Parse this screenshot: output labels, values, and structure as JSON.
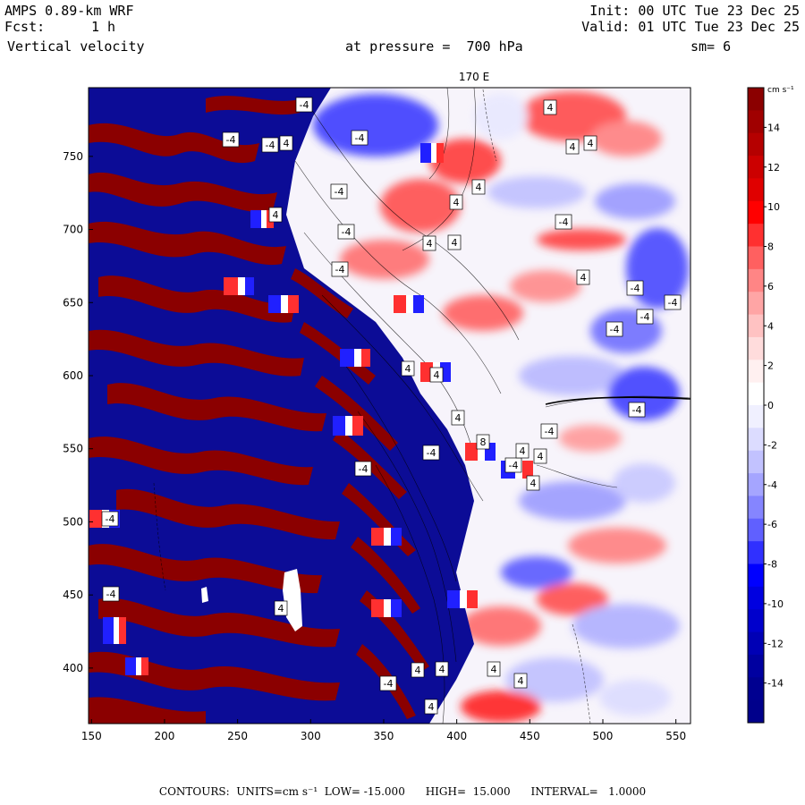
{
  "header": {
    "model": "AMPS 0.89-km WRF",
    "fcst_label": "Fcst:",
    "fcst_value": "1 h",
    "variable": "Vertical velocity",
    "level_text": "at pressure =  700 hPa",
    "init_text": "Init: 00 UTC Tue 23 Dec 25",
    "valid_text": "Valid: 01 UTC Tue 23 Dec 25",
    "smoothing": "sm= 6"
  },
  "map": {
    "meridian_label": "170 E",
    "x_ticks": [
      "150",
      "200",
      "250",
      "300",
      "350",
      "400",
      "450",
      "500",
      "550"
    ],
    "y_ticks": [
      "750",
      "700",
      "650",
      "600",
      "550",
      "500",
      "450",
      "400"
    ],
    "x_range": [
      148,
      560
    ],
    "y_range": [
      362,
      797
    ],
    "contour_value_labels": [
      "4",
      "-4",
      "8"
    ]
  },
  "colorbar": {
    "units_label": "cm s⁻¹",
    "tick_labels": [
      "14",
      "12",
      "10",
      "8",
      "6",
      "4",
      "2",
      "0",
      "-2",
      "-4",
      "-6",
      "-8",
      "-10",
      "-12",
      "-14"
    ],
    "colors_top_to_bottom": [
      "#8b0000",
      "#a00000",
      "#b50000",
      "#cc0000",
      "#e00000",
      "#ff0000",
      "#ff3030",
      "#ff6060",
      "#ff8585",
      "#ffa5a5",
      "#ffc2c2",
      "#ffdcdc",
      "#fff0f0",
      "#ffffff",
      "#f0f0ff",
      "#dcdcff",
      "#c2c2ff",
      "#a5a5ff",
      "#8585ff",
      "#6060ff",
      "#3030ff",
      "#0000ff",
      "#0000e0",
      "#0000cc",
      "#0000b5",
      "#0000a0",
      "#000090",
      "#00008b"
    ]
  },
  "footer": {
    "text": "CONTOURS:  UNITS=cm s⁻¹  LOW= -15.000      HIGH=  15.000      INTERVAL=   1.0000"
  }
}
